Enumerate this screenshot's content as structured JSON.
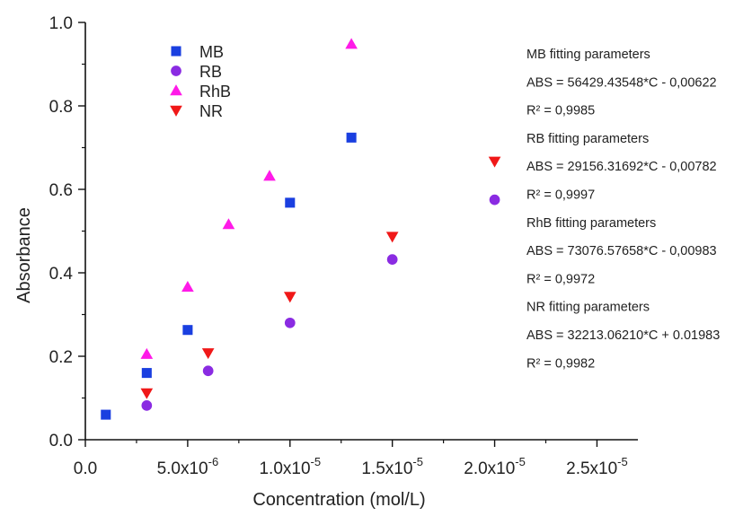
{
  "chart_data": {
    "type": "scatter",
    "xlabel": "Concentration (mol/L)",
    "ylabel": "Absorbance",
    "xlim": [
      0,
      2.7e-05
    ],
    "ylim": [
      0,
      1.0
    ],
    "x_ticks": [
      {
        "value": 0,
        "label": "0.0",
        "exp": ""
      },
      {
        "value": 5e-06,
        "label": "5.0x10",
        "exp": "-6"
      },
      {
        "value": 1e-05,
        "label": "1.0x10",
        "exp": "-5"
      },
      {
        "value": 1.5e-05,
        "label": "1.5x10",
        "exp": "-5"
      },
      {
        "value": 2e-05,
        "label": "2.0x10",
        "exp": "-5"
      },
      {
        "value": 2.5e-05,
        "label": "2.5x10",
        "exp": "-5"
      }
    ],
    "y_ticks": [
      {
        "value": 0,
        "label": "0.0"
      },
      {
        "value": 0.2,
        "label": "0.2"
      },
      {
        "value": 0.4,
        "label": "0.4"
      },
      {
        "value": 0.6,
        "label": "0.6"
      },
      {
        "value": 0.8,
        "label": "0.8"
      },
      {
        "value": 1.0,
        "label": "1.0"
      }
    ],
    "legend_position": "top-left",
    "grid": false,
    "series": [
      {
        "name": "MB",
        "marker": "square",
        "color": "#1a3fe0",
        "points": [
          [
            1e-06,
            0.06
          ],
          [
            3e-06,
            0.16
          ],
          [
            5e-06,
            0.263
          ],
          [
            1e-05,
            0.568
          ],
          [
            1.3e-05,
            0.724
          ]
        ]
      },
      {
        "name": "RB",
        "marker": "circle",
        "color": "#8a2be2",
        "points": [
          [
            3e-06,
            0.082
          ],
          [
            6e-06,
            0.165
          ],
          [
            1e-05,
            0.28
          ],
          [
            1.5e-05,
            0.432
          ],
          [
            2e-05,
            0.575
          ]
        ]
      },
      {
        "name": "RhB",
        "marker": "triangle-up",
        "color": "#ff1ae8",
        "points": [
          [
            3e-06,
            0.205
          ],
          [
            5e-06,
            0.366
          ],
          [
            7e-06,
            0.516
          ],
          [
            9e-06,
            0.632
          ],
          [
            1.3e-05,
            0.948
          ]
        ]
      },
      {
        "name": "NR",
        "marker": "triangle-down",
        "color": "#f01818",
        "points": [
          [
            3e-06,
            0.112
          ],
          [
            6e-06,
            0.208
          ],
          [
            1e-05,
            0.343
          ],
          [
            1.5e-05,
            0.487
          ],
          [
            2e-05,
            0.667
          ]
        ]
      }
    ],
    "annotations": [
      "MB fitting parameters",
      "ABS = 56429.43548*C  - 0,00622",
      "R² = 0,9985",
      "RB fitting parameters",
      "ABS = 29156.31692*C  - 0,00782",
      "R² = 0,9997",
      "RhB fitting parameters",
      "ABS = 73076.57658*C  - 0,00983",
      "R² = 0,9972",
      "NR fitting parameters",
      "ABS = 32213.06210*C  + 0.01983",
      "R² = 0,9982"
    ]
  }
}
